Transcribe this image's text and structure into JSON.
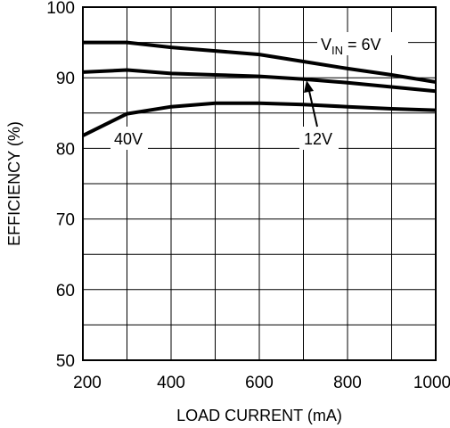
{
  "chart_data": {
    "type": "line",
    "xlabel": "LOAD CURRENT (mA)",
    "ylabel": "EFFICIENCY (%)",
    "xlim": [
      200,
      1000
    ],
    "ylim": [
      50,
      100
    ],
    "xticks": [
      "200",
      "400",
      "600",
      "800",
      "1000"
    ],
    "yticks": [
      "50",
      "60",
      "70",
      "80",
      "90",
      "100"
    ],
    "grid": true,
    "series": [
      {
        "name": "VIN = 6V",
        "x": [
          200,
          300,
          400,
          500,
          600,
          700,
          800,
          900,
          1000
        ],
        "y": [
          95.0,
          95.0,
          94.3,
          93.8,
          93.3,
          92.3,
          91.3,
          90.4,
          89.4
        ]
      },
      {
        "name": "12V",
        "x": [
          200,
          300,
          400,
          500,
          600,
          700,
          800,
          900,
          1000
        ],
        "y": [
          90.8,
          91.1,
          90.6,
          90.4,
          90.2,
          89.8,
          89.3,
          88.7,
          88.1
        ]
      },
      {
        "name": "40V",
        "x": [
          200,
          300,
          400,
          500,
          600,
          700,
          800,
          900,
          1000
        ],
        "y": [
          81.8,
          84.9,
          85.9,
          86.4,
          86.4,
          86.2,
          85.9,
          85.6,
          85.4
        ]
      }
    ],
    "annotations": {
      "vin_main": "V",
      "vin_sub": "IN",
      "vin_rest": " = 6V",
      "v12": "12V",
      "v40": "40V"
    }
  }
}
